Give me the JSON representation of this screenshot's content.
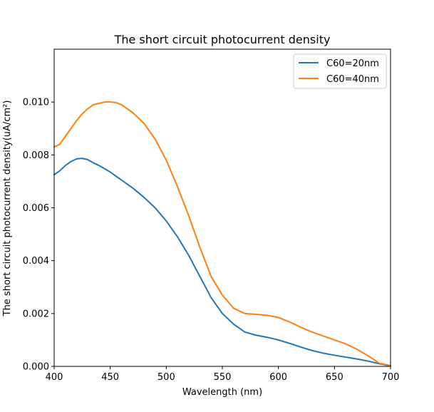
{
  "chart_data": {
    "type": "line",
    "title": "The short circuit photocurrent density",
    "xlabel": "Wavelength (nm)",
    "ylabel": "The short circuit photocurrent density(uA/cm²)",
    "xlim": [
      400,
      700
    ],
    "ylim": [
      0,
      0.012
    ],
    "xticks": [
      400,
      450,
      500,
      550,
      600,
      650,
      700
    ],
    "xtick_labels": [
      "400",
      "450",
      "500",
      "550",
      "600",
      "650",
      "700"
    ],
    "yticks": [
      0,
      0.002,
      0.004,
      0.006,
      0.008,
      0.01
    ],
    "ytick_labels": [
      "0.000",
      "0.002",
      "0.004",
      "0.006",
      "0.008",
      "0.010"
    ],
    "grid": false,
    "legend_position": "top-right",
    "series": [
      {
        "name": "C60=20nm",
        "color": "#1f77b4",
        "x": [
          400,
          405,
          410,
          415,
          420,
          425,
          430,
          435,
          440,
          445,
          450,
          460,
          470,
          480,
          490,
          500,
          510,
          520,
          530,
          540,
          550,
          560,
          570,
          580,
          590,
          600,
          610,
          620,
          630,
          640,
          650,
          660,
          670,
          680,
          690,
          700
        ],
        "y": [
          0.00725,
          0.0074,
          0.0076,
          0.00775,
          0.00785,
          0.00787,
          0.00782,
          0.0077,
          0.0076,
          0.00748,
          0.00735,
          0.00705,
          0.00675,
          0.0064,
          0.006,
          0.0055,
          0.0049,
          0.0042,
          0.0034,
          0.0026,
          0.002,
          0.0016,
          0.0013,
          0.00118,
          0.0011,
          0.001,
          0.00087,
          0.00073,
          0.0006,
          0.0005,
          0.00042,
          0.00035,
          0.00028,
          0.0002,
          0.0001,
          2e-05
        ]
      },
      {
        "name": "C60=40nm",
        "color": "#ff7f0e",
        "x": [
          400,
          405,
          410,
          415,
          420,
          425,
          430,
          435,
          440,
          445,
          450,
          455,
          460,
          470,
          480,
          490,
          500,
          510,
          520,
          530,
          540,
          550,
          560,
          570,
          580,
          590,
          600,
          610,
          620,
          630,
          640,
          650,
          660,
          670,
          680,
          690,
          700
        ],
        "y": [
          0.0083,
          0.0084,
          0.0087,
          0.009,
          0.0093,
          0.00955,
          0.00975,
          0.0099,
          0.00995,
          0.01,
          0.01,
          0.00998,
          0.0099,
          0.0096,
          0.0092,
          0.0086,
          0.0078,
          0.0068,
          0.0057,
          0.0045,
          0.0034,
          0.0027,
          0.0022,
          0.002,
          0.00197,
          0.00193,
          0.00185,
          0.00168,
          0.00148,
          0.0013,
          0.00115,
          0.001,
          0.00085,
          0.00065,
          0.0004,
          0.00012,
          3e-05
        ]
      }
    ]
  }
}
